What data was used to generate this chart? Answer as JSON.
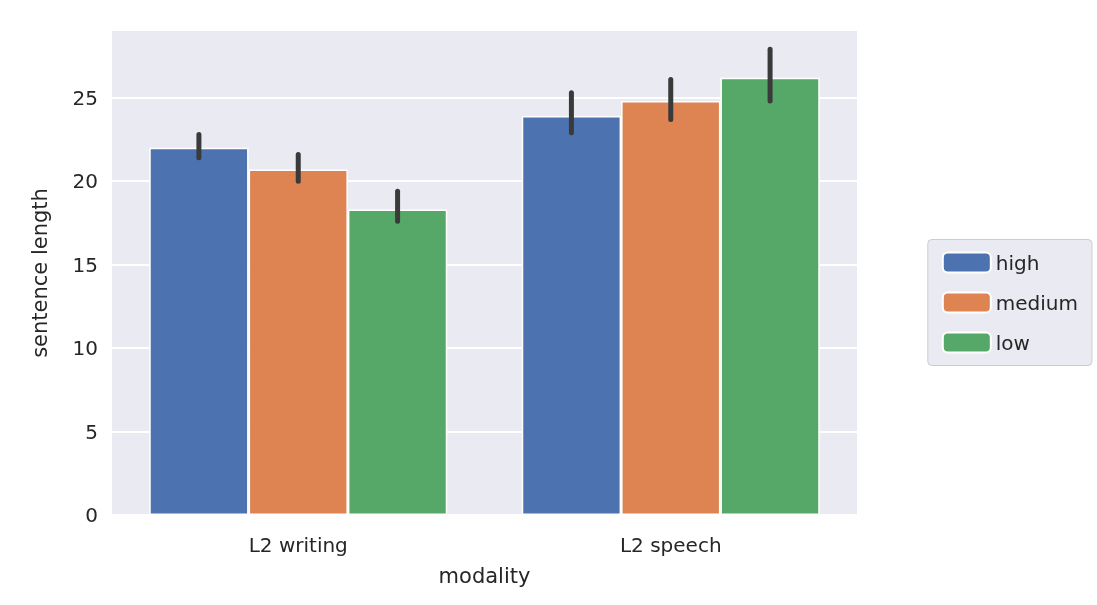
{
  "chart_data": {
    "type": "bar",
    "xlabel": "modality",
    "ylabel": "sentence length",
    "categories": [
      "L2 writing",
      "L2 speech"
    ],
    "series": [
      {
        "name": "high",
        "color": "#4c72b0",
        "values": [
          22.0,
          23.9
        ],
        "errors": [
          [
            21.4,
            22.8
          ],
          [
            22.9,
            25.3
          ]
        ]
      },
      {
        "name": "medium",
        "color": "#dd8452",
        "values": [
          20.7,
          24.8
        ],
        "errors": [
          [
            20.0,
            21.6
          ],
          [
            23.7,
            26.1
          ]
        ]
      },
      {
        "name": "low",
        "color": "#55a868",
        "values": [
          18.3,
          26.2
        ],
        "errors": [
          [
            17.6,
            19.4
          ],
          [
            24.8,
            27.9
          ]
        ]
      }
    ],
    "ylim": [
      0,
      29
    ],
    "yticks": [
      0,
      5,
      10,
      15,
      20,
      25
    ],
    "grid": true,
    "legend": "right"
  }
}
